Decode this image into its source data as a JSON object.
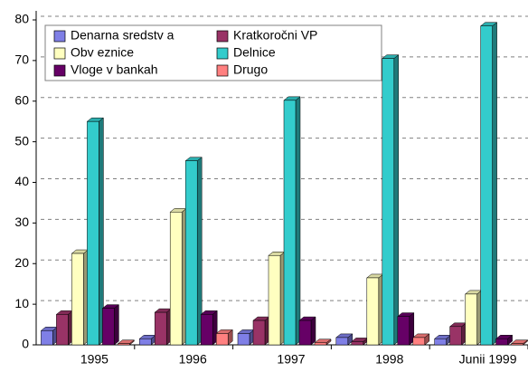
{
  "chart_data": {
    "type": "bar3d",
    "categories": [
      "1995",
      "1996",
      "1997",
      "1998",
      "Junii 1999"
    ],
    "series": [
      {
        "name": "Denarna sredstv a",
        "color": "#7f7fe6",
        "values": [
          3.5,
          1.5,
          2.8,
          1.8,
          1.5
        ]
      },
      {
        "name": "Kratkoročni VP",
        "color": "#993366",
        "values": [
          7.5,
          8,
          6,
          0.8,
          4.5
        ]
      },
      {
        "name": "Obv eznice",
        "color": "#ffffc0",
        "values": [
          22.5,
          32.7,
          22,
          16.5,
          12.5
        ]
      },
      {
        "name": "Delnice",
        "color": "#33cccc",
        "values": [
          55,
          45.3,
          60.2,
          70.5,
          78.5
        ]
      },
      {
        "name": "Vloge v bankah",
        "color": "#660066",
        "values": [
          9,
          7.5,
          6,
          7,
          1.5
        ]
      },
      {
        "name": "Drugo",
        "color": "#ff8080",
        "values": [
          0.3,
          2.8,
          0.5,
          1.8,
          0.3
        ]
      }
    ],
    "ylim": [
      0,
      80
    ],
    "yticks": [
      0,
      10,
      20,
      30,
      40,
      50,
      60,
      70,
      80
    ],
    "grid": true,
    "legend": "top-left"
  }
}
